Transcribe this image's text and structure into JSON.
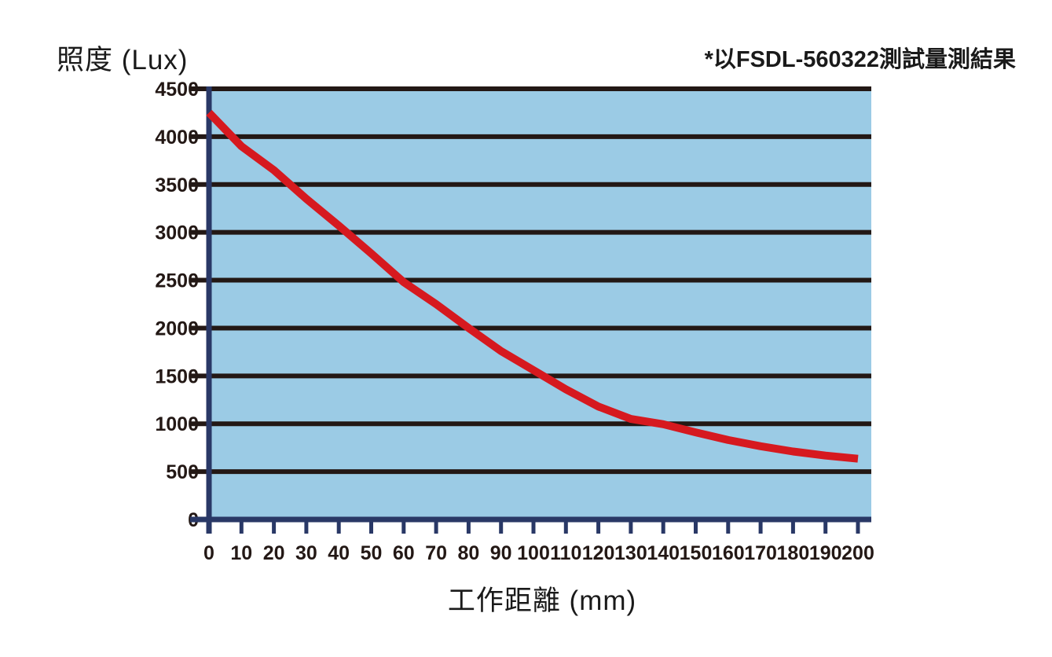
{
  "header": {
    "y_axis_title": "照度 (Lux)",
    "note": "*以FSDL-560322測試量測結果"
  },
  "chart_data": {
    "type": "line",
    "title": "照度 (Lux)",
    "note": "*以FSDL-560322測試量測結果",
    "xlabel": "工作距離 (mm)",
    "ylabel": "照度 (Lux)",
    "x": [
      0,
      10,
      20,
      30,
      40,
      50,
      60,
      70,
      80,
      90,
      100,
      110,
      120,
      130,
      140,
      150,
      160,
      170,
      180,
      190,
      200
    ],
    "series": [
      {
        "name": "照度",
        "values": [
          4250,
          3900,
          3650,
          3350,
          3070,
          2780,
          2480,
          2250,
          2000,
          1760,
          1560,
          1360,
          1180,
          1050,
          995,
          910,
          830,
          765,
          710,
          668,
          635
        ]
      }
    ],
    "xlim": [
      0,
      200
    ],
    "ylim": [
      0,
      4500
    ],
    "x_tick_step": 10,
    "y_tick_step": 500,
    "grid": "horizontal",
    "legend": "none",
    "colors": {
      "plot_background": "#9BCBE5",
      "line": "#D6191F",
      "axis": "#293866",
      "gridline": "#231815",
      "tick_text": "#231815"
    }
  }
}
